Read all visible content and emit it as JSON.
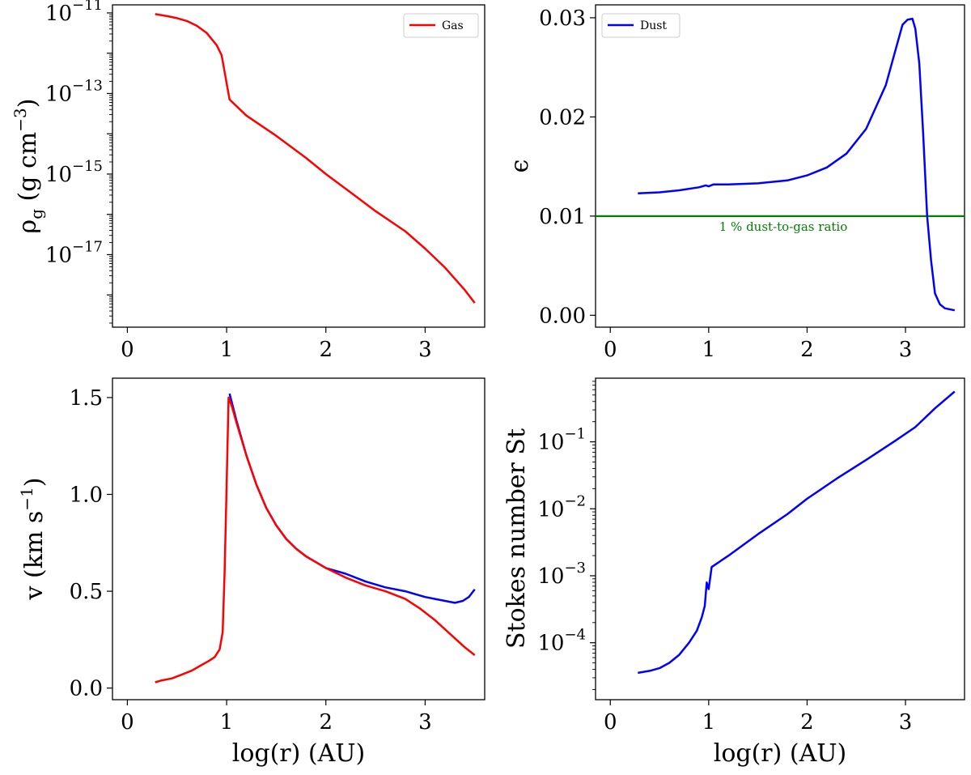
{
  "chart_data": [
    {
      "id": "gas-density",
      "type": "line",
      "yscale": "log",
      "xlim": [
        -0.15,
        3.6
      ],
      "ylim_log10": [
        -18.8,
        -10.8
      ],
      "xticks": [
        0,
        1,
        2,
        3
      ],
      "xticklabels": [
        "0",
        "1",
        "2",
        "3"
      ],
      "yticks_log10": [
        -11,
        -13,
        -15,
        -17
      ],
      "yticklabels": [
        {
          "base": "10",
          "exp": "−11"
        },
        {
          "base": "10",
          "exp": "−13"
        },
        {
          "base": "10",
          "exp": "−15"
        },
        {
          "base": "10",
          "exp": "−17"
        }
      ],
      "xlabel": "",
      "ylabel": "ρg (g cm−3)",
      "legend": {
        "position": "top-right",
        "entries": [
          {
            "label": "Gas",
            "color": "#ff0000"
          }
        ]
      },
      "series": [
        {
          "name": "Gas",
          "color": "#ff0000",
          "x": [
            0.28,
            0.4,
            0.5,
            0.6,
            0.7,
            0.8,
            0.9,
            0.95,
            1.03,
            1.2,
            1.5,
            1.8,
            2.0,
            2.3,
            2.5,
            2.8,
            3.0,
            3.2,
            3.4,
            3.5
          ],
          "y": [
            -11.03,
            -11.08,
            -11.13,
            -11.2,
            -11.32,
            -11.5,
            -11.8,
            -12.05,
            -13.15,
            -13.55,
            -14.05,
            -14.6,
            -15.0,
            -15.55,
            -15.92,
            -16.42,
            -16.85,
            -17.32,
            -17.88,
            -18.2
          ]
        }
      ]
    },
    {
      "id": "dust-to-gas",
      "type": "line",
      "yscale": "linear",
      "xlim": [
        -0.15,
        3.6
      ],
      "ylim": [
        -0.0012,
        0.0313
      ],
      "xticks": [
        0,
        1,
        2,
        3
      ],
      "xticklabels": [
        "0",
        "1",
        "2",
        "3"
      ],
      "yticks": [
        0.0,
        0.01,
        0.02,
        0.03
      ],
      "yticklabels": [
        "0.00",
        "0.01",
        "0.02",
        "0.03"
      ],
      "xlabel": "",
      "ylabel": "ϵ",
      "legend": {
        "position": "top-left",
        "entries": [
          {
            "label": "Dust",
            "color": "#0000ff"
          }
        ]
      },
      "hline": {
        "y": 0.01,
        "color": "#008000",
        "label": "1 % dust-to-gas ratio"
      },
      "series": [
        {
          "name": "Dust",
          "color": "#0000ff",
          "x": [
            0.28,
            0.5,
            0.7,
            0.9,
            0.97,
            1.0,
            1.05,
            1.2,
            1.5,
            1.8,
            2.0,
            2.2,
            2.4,
            2.6,
            2.8,
            2.9,
            2.97,
            3.02,
            3.07,
            3.1,
            3.14,
            3.18,
            3.22,
            3.26,
            3.3,
            3.35,
            3.4,
            3.5
          ],
          "y": [
            0.0123,
            0.0124,
            0.0126,
            0.0129,
            0.0131,
            0.013,
            0.0132,
            0.0132,
            0.0133,
            0.0136,
            0.0141,
            0.0149,
            0.0163,
            0.0188,
            0.0232,
            0.0268,
            0.0293,
            0.0298,
            0.0299,
            0.0289,
            0.0254,
            0.0183,
            0.01,
            0.0055,
            0.0022,
            0.0011,
            0.0007,
            0.0005
          ]
        }
      ]
    },
    {
      "id": "velocity",
      "type": "line",
      "yscale": "linear",
      "xlim": [
        -0.15,
        3.6
      ],
      "ylim": [
        -0.06,
        1.6
      ],
      "xticks": [
        0,
        1,
        2,
        3
      ],
      "xticklabels": [
        "0",
        "1",
        "2",
        "3"
      ],
      "yticks": [
        0.0,
        0.5,
        1.0,
        1.5
      ],
      "yticklabels": [
        "0.0",
        "0.5",
        "1.0",
        "1.5"
      ],
      "xlabel": "log(r) (AU)",
      "ylabel": "v (km s−1)",
      "series": [
        {
          "name": "Dust",
          "color": "#0000ff",
          "x": [
            1.03,
            1.1,
            1.2,
            1.3,
            1.4,
            1.5,
            1.6,
            1.7,
            1.8,
            1.9,
            2.0,
            2.2,
            2.4,
            2.6,
            2.8,
            3.0,
            3.1,
            3.2,
            3.3,
            3.38,
            3.44,
            3.5
          ],
          "y": [
            1.52,
            1.38,
            1.2,
            1.05,
            0.93,
            0.84,
            0.77,
            0.72,
            0.68,
            0.65,
            0.62,
            0.59,
            0.55,
            0.52,
            0.5,
            0.47,
            0.46,
            0.45,
            0.44,
            0.45,
            0.47,
            0.51
          ]
        },
        {
          "name": "Gas",
          "color": "#ff0000",
          "x": [
            0.28,
            0.35,
            0.45,
            0.55,
            0.65,
            0.75,
            0.82,
            0.88,
            0.93,
            0.96,
            0.98,
            1.0,
            1.02,
            1.05,
            1.1,
            1.2,
            1.3,
            1.4,
            1.5,
            1.6,
            1.7,
            1.8,
            1.9,
            2.0,
            2.2,
            2.4,
            2.6,
            2.8,
            2.95,
            3.1,
            3.25,
            3.4,
            3.5
          ],
          "y": [
            0.03,
            0.04,
            0.05,
            0.07,
            0.09,
            0.12,
            0.14,
            0.16,
            0.2,
            0.29,
            0.6,
            1.05,
            1.5,
            1.46,
            1.37,
            1.2,
            1.05,
            0.93,
            0.84,
            0.77,
            0.72,
            0.68,
            0.65,
            0.62,
            0.57,
            0.53,
            0.5,
            0.46,
            0.41,
            0.35,
            0.28,
            0.21,
            0.17
          ]
        }
      ]
    },
    {
      "id": "stokes",
      "type": "line",
      "yscale": "log",
      "xlim": [
        -0.15,
        3.6
      ],
      "ylim_log10": [
        -4.85,
        -0.05
      ],
      "xticks": [
        0,
        1,
        2,
        3
      ],
      "xticklabels": [
        "0",
        "1",
        "2",
        "3"
      ],
      "yticks_log10": [
        -4,
        -3,
        -2,
        -1
      ],
      "yticklabels": [
        {
          "base": "10",
          "exp": "−4"
        },
        {
          "base": "10",
          "exp": "−3"
        },
        {
          "base": "10",
          "exp": "−2"
        },
        {
          "base": "10",
          "exp": "−1"
        }
      ],
      "xlabel": "log(r) (AU)",
      "ylabel": "Stokes number St",
      "series": [
        {
          "name": "Dust",
          "color": "#0000ff",
          "x": [
            0.28,
            0.4,
            0.5,
            0.6,
            0.7,
            0.8,
            0.88,
            0.93,
            0.96,
            0.98,
            1.0,
            1.03,
            1.2,
            1.5,
            1.8,
            2.0,
            2.3,
            2.6,
            2.9,
            3.1,
            3.3,
            3.5
          ],
          "y": [
            -4.45,
            -4.42,
            -4.38,
            -4.3,
            -4.18,
            -4.0,
            -3.82,
            -3.62,
            -3.45,
            -3.1,
            -3.2,
            -2.87,
            -2.7,
            -2.38,
            -2.08,
            -1.85,
            -1.55,
            -1.27,
            -0.98,
            -0.78,
            -0.5,
            -0.25
          ]
        }
      ]
    }
  ]
}
